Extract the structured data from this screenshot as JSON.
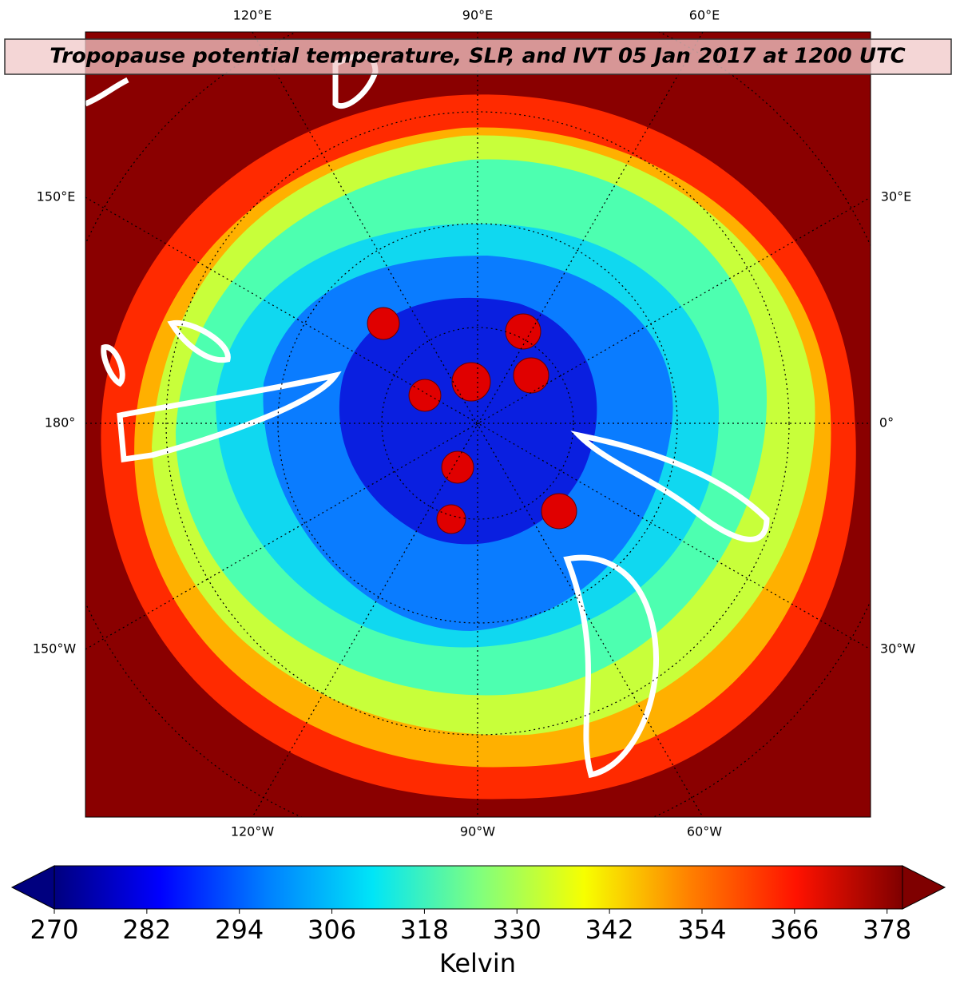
{
  "map": {
    "title": "Tropopause potential temperature, SLP, and IVT 05 Jan 2017 at 1200 UTC",
    "lon_labels": {
      "top": [
        "120°E",
        "90°E",
        "60°E"
      ],
      "left": [
        "150°E",
        "180°",
        "150°W"
      ],
      "right": [
        "30°E",
        "0°",
        "30°W"
      ],
      "bottom": [
        "120°W",
        "90°W",
        "60°W"
      ]
    },
    "colorbar": {
      "label": "Kelvin",
      "lim": [
        270,
        380
      ],
      "ticks": [
        270,
        282,
        294,
        306,
        318,
        330,
        342,
        354,
        366,
        378
      ],
      "colors": [
        "#00007f",
        "#0000ff",
        "#007fff",
        "#00e5f7",
        "#7fff7f",
        "#f7ff00",
        "#ff7f00",
        "#ff1200",
        "#7f0000"
      ]
    }
  }
}
